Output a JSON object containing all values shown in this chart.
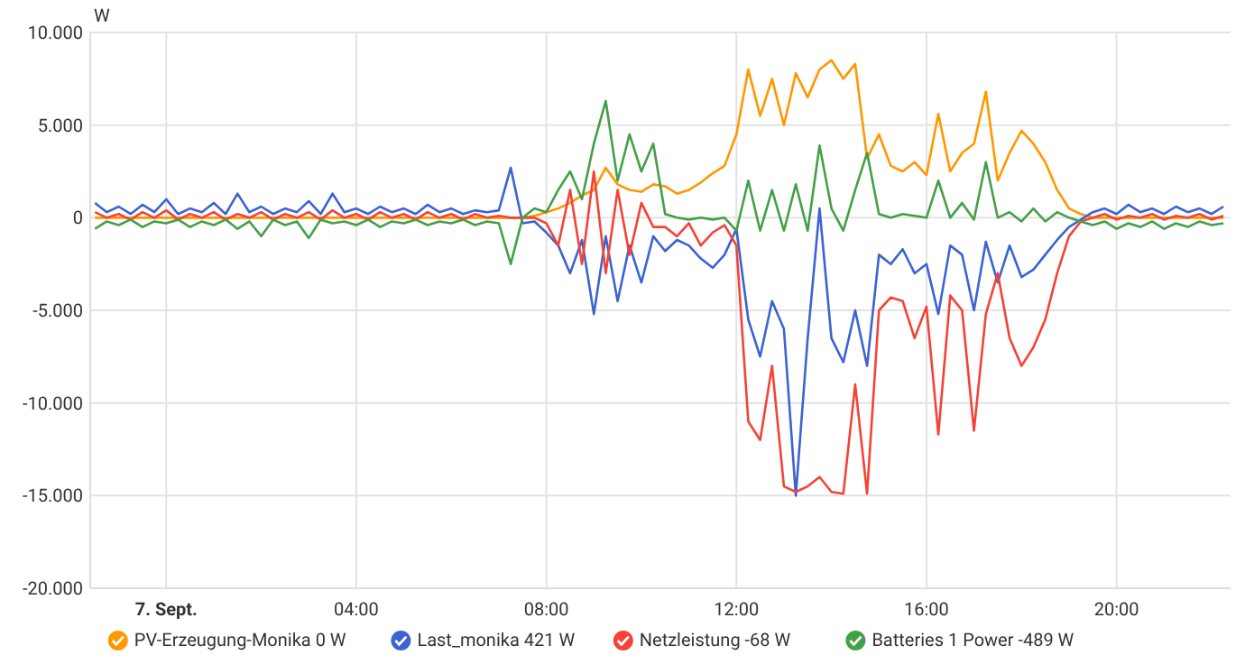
{
  "chart_data": {
    "type": "line",
    "ylabel": "W",
    "legend": "bottom",
    "grid": true,
    "line_style": "solid",
    "x": [
      -1.5,
      -1.25,
      -1,
      -0.75,
      -0.5,
      -0.25,
      0,
      0.25,
      0.5,
      0.75,
      1,
      1.25,
      1.5,
      1.75,
      2,
      2.25,
      2.5,
      2.75,
      3,
      3.25,
      3.5,
      3.75,
      4,
      4.25,
      4.5,
      4.75,
      5,
      5.25,
      5.5,
      5.75,
      6,
      6.25,
      6.5,
      6.75,
      7,
      7.25,
      7.5,
      7.75,
      8,
      8.25,
      8.5,
      8.75,
      9,
      9.25,
      9.5,
      9.75,
      10,
      10.25,
      10.5,
      10.75,
      11,
      11.25,
      11.5,
      11.75,
      12,
      12.25,
      12.5,
      12.75,
      13,
      13.25,
      13.5,
      13.75,
      14,
      14.25,
      14.5,
      14.75,
      15,
      15.25,
      15.5,
      15.75,
      16,
      16.25,
      16.5,
      16.75,
      17,
      17.25,
      17.5,
      17.75,
      18,
      18.25,
      18.5,
      18.75,
      19,
      19.25,
      19.5,
      19.75,
      20,
      20.25,
      20.5,
      20.75,
      21,
      21.25,
      21.5,
      21.75,
      22,
      22.25
    ],
    "xlim": [
      -1.6,
      22.4
    ],
    "xticks": [
      {
        "value": 0,
        "label": "7. Sept."
      },
      {
        "value": 4,
        "label": "04:00"
      },
      {
        "value": 8,
        "label": "08:00"
      },
      {
        "value": 12,
        "label": "12:00"
      },
      {
        "value": 16,
        "label": "16:00"
      },
      {
        "value": 20,
        "label": "20:00"
      }
    ],
    "ylim": [
      -20000,
      10000
    ],
    "yticks": [
      {
        "value": -20000,
        "label": "-20.000"
      },
      {
        "value": -15000,
        "label": "-15.000"
      },
      {
        "value": -10000,
        "label": "-10.000"
      },
      {
        "value": -5000,
        "label": "-5.000"
      },
      0,
      {
        "value": 5000,
        "label": "5.000"
      },
      {
        "value": 10000,
        "label": "10.000"
      }
    ],
    "series": [
      {
        "name": "PV-Erzeugung-Monika 0 W",
        "color": "#ff9800",
        "values": [
          0,
          0,
          0,
          0,
          0,
          0,
          0,
          0,
          0,
          0,
          0,
          0,
          0,
          0,
          0,
          0,
          0,
          0,
          0,
          0,
          0,
          0,
          0,
          0,
          0,
          0,
          0,
          0,
          0,
          0,
          0,
          0,
          0,
          0,
          0,
          0,
          0,
          100,
          300,
          500,
          800,
          1200,
          1500,
          2700,
          1800,
          1500,
          1400,
          1800,
          1700,
          1300,
          1500,
          1900,
          2400,
          2800,
          4500,
          8000,
          5500,
          7500,
          5000,
          7800,
          6500,
          8000,
          8500,
          7500,
          8300,
          3200,
          4500,
          2800,
          2500,
          3000,
          2300,
          5600,
          2500,
          3500,
          4000,
          6800,
          2000,
          3500,
          4700,
          4000,
          3000,
          1500,
          500,
          200,
          0,
          0,
          0,
          0,
          0,
          0,
          0,
          0,
          0,
          0,
          0,
          0
        ]
      },
      {
        "name": "Last_monika 421 W",
        "color": "#3b63d3",
        "values": [
          800,
          300,
          600,
          200,
          700,
          300,
          1000,
          200,
          500,
          300,
          800,
          200,
          1300,
          300,
          600,
          200,
          500,
          300,
          900,
          200,
          1300,
          300,
          500,
          200,
          600,
          300,
          500,
          200,
          700,
          300,
          500,
          200,
          400,
          300,
          400,
          2700,
          -300,
          -200,
          -800,
          -1500,
          -3000,
          -1200,
          -5200,
          -1000,
          -4500,
          -1500,
          -3500,
          -1000,
          -1800,
          -1200,
          -1500,
          -2200,
          -2700,
          -2000,
          -600,
          -5500,
          -7500,
          -4500,
          -6000,
          -15000,
          -6500,
          500,
          -6500,
          -7800,
          -5000,
          -8000,
          -2000,
          -2500,
          -1700,
          -3000,
          -2500,
          -5200,
          -1500,
          -2000,
          -5000,
          -1300,
          -3500,
          -1500,
          -3200,
          -2800,
          -2000,
          -1200,
          -500,
          -100,
          300,
          500,
          200,
          700,
          300,
          500,
          200,
          600,
          300,
          500,
          200,
          600
        ]
      },
      {
        "name": "Netzleistung -68 W",
        "color": "#f44336",
        "values": [
          300,
          0,
          200,
          -100,
          300,
          0,
          400,
          -100,
          200,
          0,
          300,
          -100,
          200,
          0,
          300,
          -100,
          200,
          0,
          300,
          -100,
          400,
          0,
          200,
          -100,
          300,
          0,
          200,
          -100,
          300,
          0,
          200,
          -100,
          200,
          0,
          100,
          0,
          0,
          0,
          -300,
          -1500,
          1500,
          -2500,
          2500,
          -3000,
          1500,
          -2000,
          800,
          -500,
          -500,
          -1000,
          -300,
          -1500,
          -800,
          -400,
          -1500,
          -11000,
          -12000,
          -8000,
          -14500,
          -14800,
          -14500,
          -14000,
          -14800,
          -14900,
          -9000,
          -14900,
          -5000,
          -4300,
          -4500,
          -6500,
          -4800,
          -11700,
          -4200,
          -5000,
          -11500,
          -5200,
          -3000,
          -6500,
          -8000,
          -7000,
          -5500,
          -3000,
          -1000,
          -200,
          0,
          200,
          -100,
          100,
          0,
          200,
          -100,
          100,
          0,
          200,
          -100,
          100
        ]
      },
      {
        "name": "Batteries 1 Power -489 W",
        "color": "#43a047",
        "values": [
          -600,
          -200,
          -400,
          -100,
          -500,
          -200,
          -300,
          -100,
          -500,
          -200,
          -400,
          -100,
          -600,
          -200,
          -1000,
          -100,
          -400,
          -200,
          -1100,
          -100,
          -300,
          -200,
          -400,
          -100,
          -500,
          -200,
          -300,
          -100,
          -400,
          -200,
          -300,
          -100,
          -400,
          -200,
          -300,
          -2500,
          0,
          500,
          300,
          1500,
          2500,
          1000,
          4000,
          6300,
          2000,
          4500,
          2500,
          4000,
          200,
          0,
          -100,
          0,
          -100,
          0,
          -700,
          2000,
          -700,
          1500,
          -700,
          1800,
          -700,
          3900,
          500,
          -700,
          1500,
          3500,
          200,
          0,
          200,
          100,
          0,
          2000,
          0,
          800,
          -100,
          3000,
          0,
          300,
          -200,
          500,
          -200,
          300,
          0,
          -200,
          -400,
          -200,
          -600,
          -300,
          -500,
          -200,
          -600,
          -300,
          -500,
          -200,
          -400,
          -300
        ]
      }
    ]
  }
}
